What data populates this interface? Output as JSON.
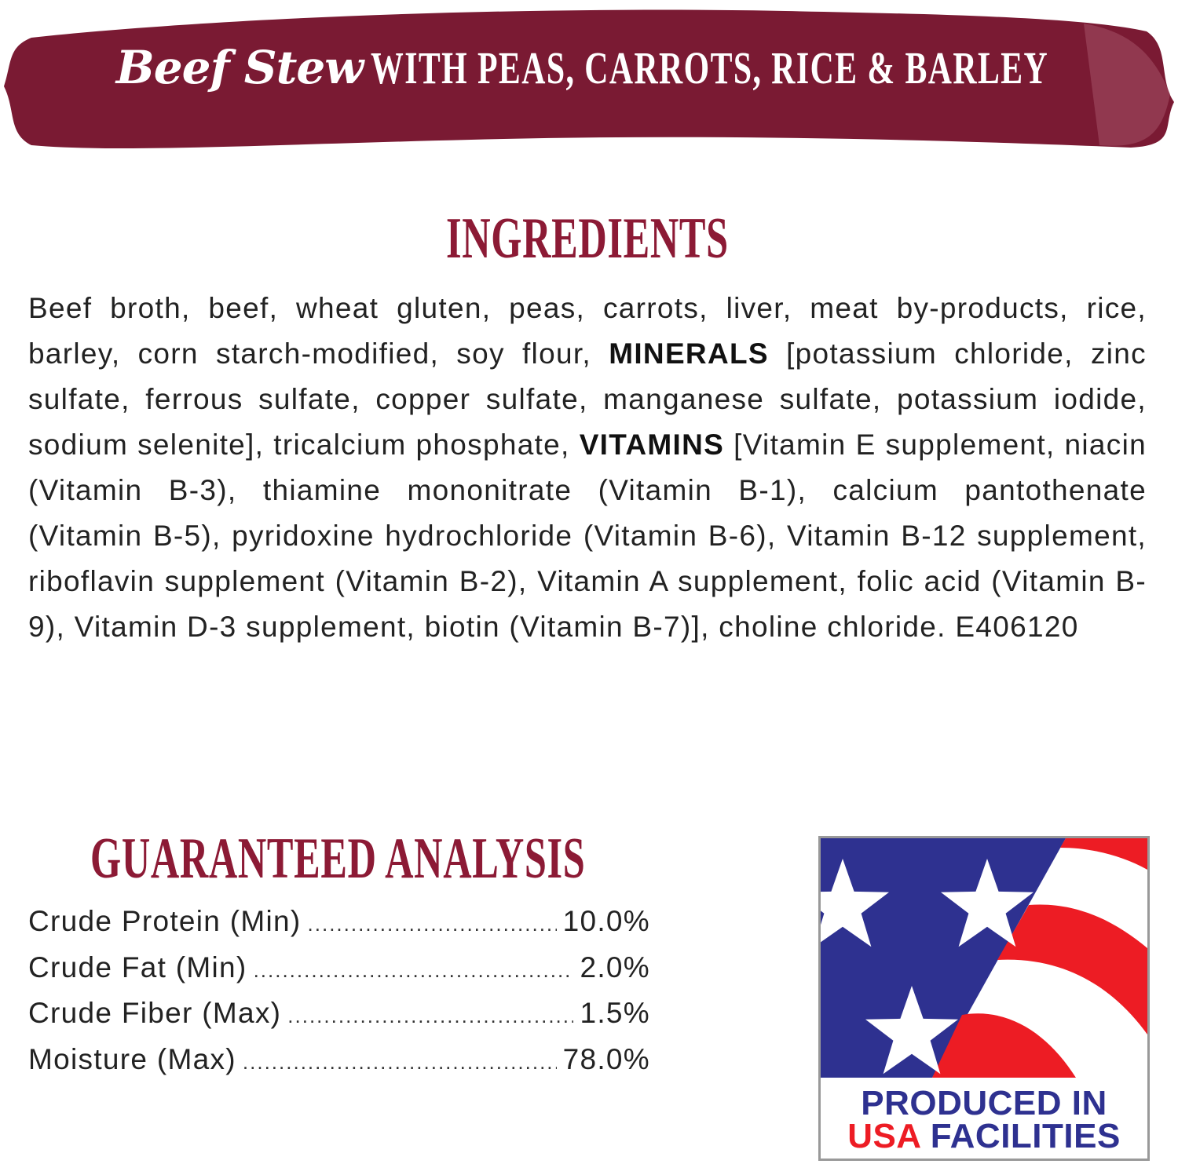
{
  "banner": {
    "title_script": "Beef Stew",
    "title_rest": "WITH PEAS, CARROTS, RICE & BARLEY",
    "color": "#7a1a33"
  },
  "ingredients": {
    "heading": "INGREDIENTS",
    "segments": [
      {
        "text": "Beef broth, beef, wheat gluten, peas, carrots, liver, meat by-products, rice, barley, corn starch-modified, soy flour, ",
        "bold": false
      },
      {
        "text": "MINERALS",
        "bold": true
      },
      {
        "text": " [potassium chloride, zinc sulfate, ferrous sulfate, copper sulfate, manganese sulfate, potassium iodide, sodium selenite], tricalcium phosphate, ",
        "bold": false
      },
      {
        "text": "VITAMINS",
        "bold": true
      },
      {
        "text": " [Vitamin E supplement, niacin (Vitamin B-3), thiamine mononitrate (Vitamin B-1), calcium pantothenate (Vitamin B-5), pyridoxine hydrochloride (Vitamin B-6), Vitamin B-12 supplement, riboflavin supplement (Vitamin B-2), Vitamin A supplement, folic acid (Vitamin B-9), Vitamin D-3 supplement, biotin (Vitamin B-7)], choline chloride.  E406120",
        "bold": false
      }
    ]
  },
  "analysis": {
    "heading": "GUARANTEED ANALYSIS",
    "rows": [
      {
        "label": "Crude Protein (Min)",
        "value": "10.0%"
      },
      {
        "label": "Crude Fat (Min)",
        "value": "2.0%"
      },
      {
        "label": "Crude Fiber (Max)",
        "value": "1.5%"
      },
      {
        "label": "Moisture (Max)",
        "value": "78.0%"
      }
    ]
  },
  "badge": {
    "line1": "PRODUCED IN",
    "line2_red": "USA",
    "line2_blue": "FACILITIES",
    "blue": "#2e3190",
    "red": "#ed1c24"
  },
  "heading_color": "#8c1a35"
}
